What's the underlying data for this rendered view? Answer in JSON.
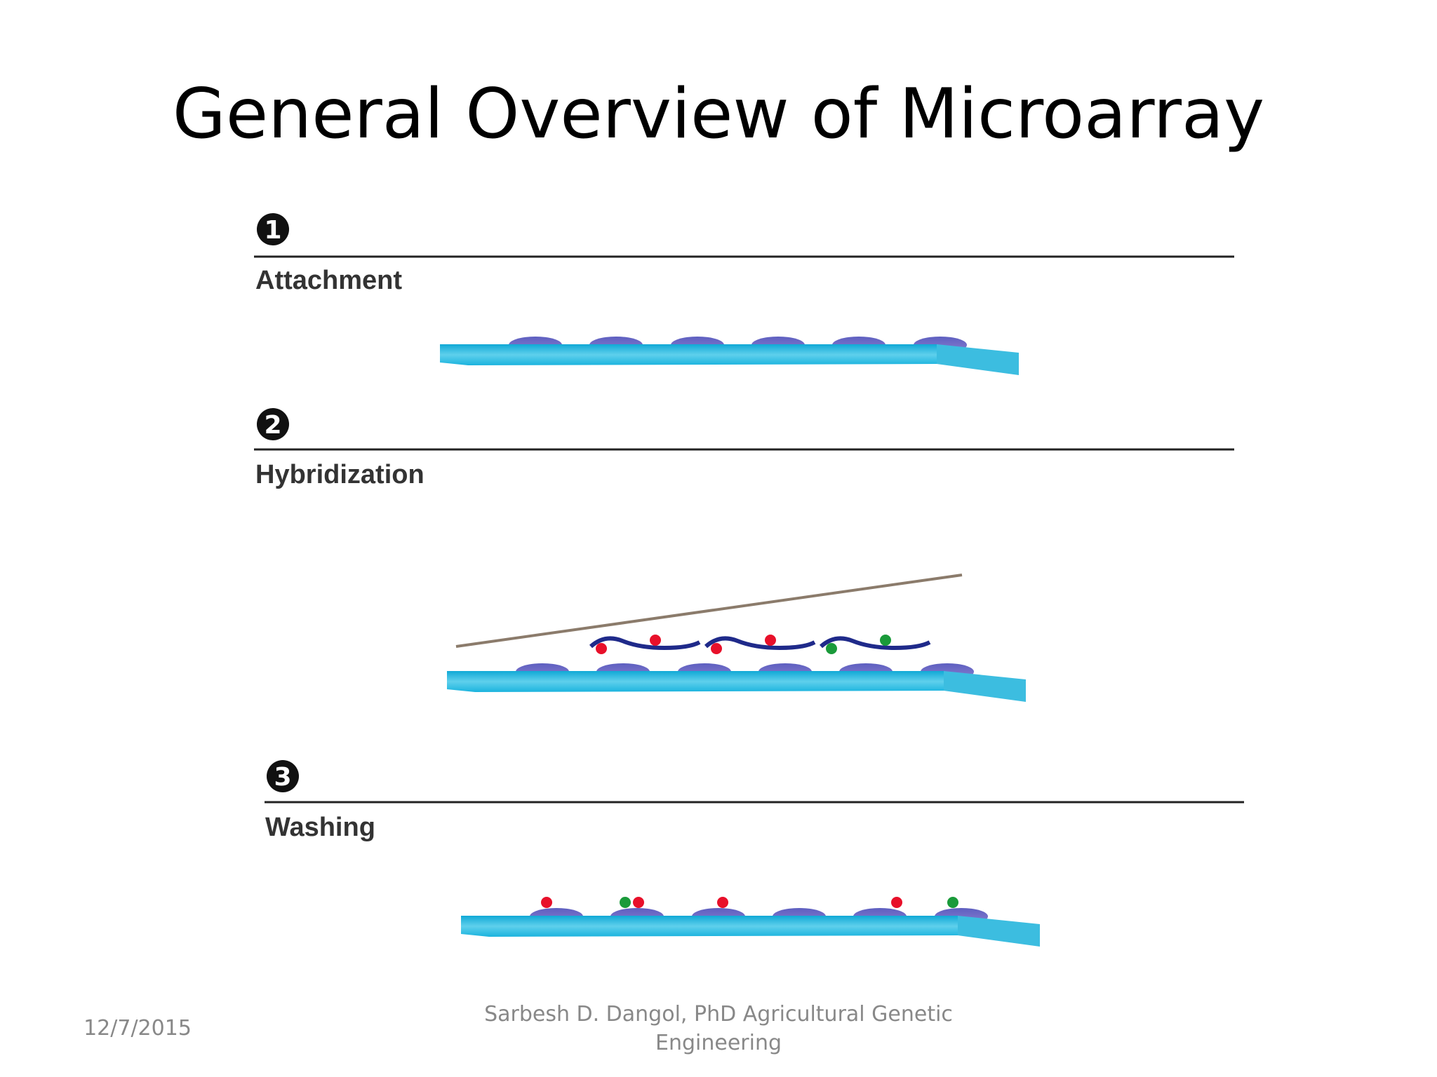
{
  "header": {
    "title": "General Overview of Microarray"
  },
  "steps": [
    {
      "number": "1",
      "label": "Attachment"
    },
    {
      "number": "2",
      "label": "Hybridization"
    },
    {
      "number": "3",
      "label": "Washing"
    }
  ],
  "footer": {
    "date": "12/7/2015",
    "author_line1": "Sarbesh D. Dangol, PhD Agricultural Genetic",
    "author_line2": "Engineering"
  }
}
